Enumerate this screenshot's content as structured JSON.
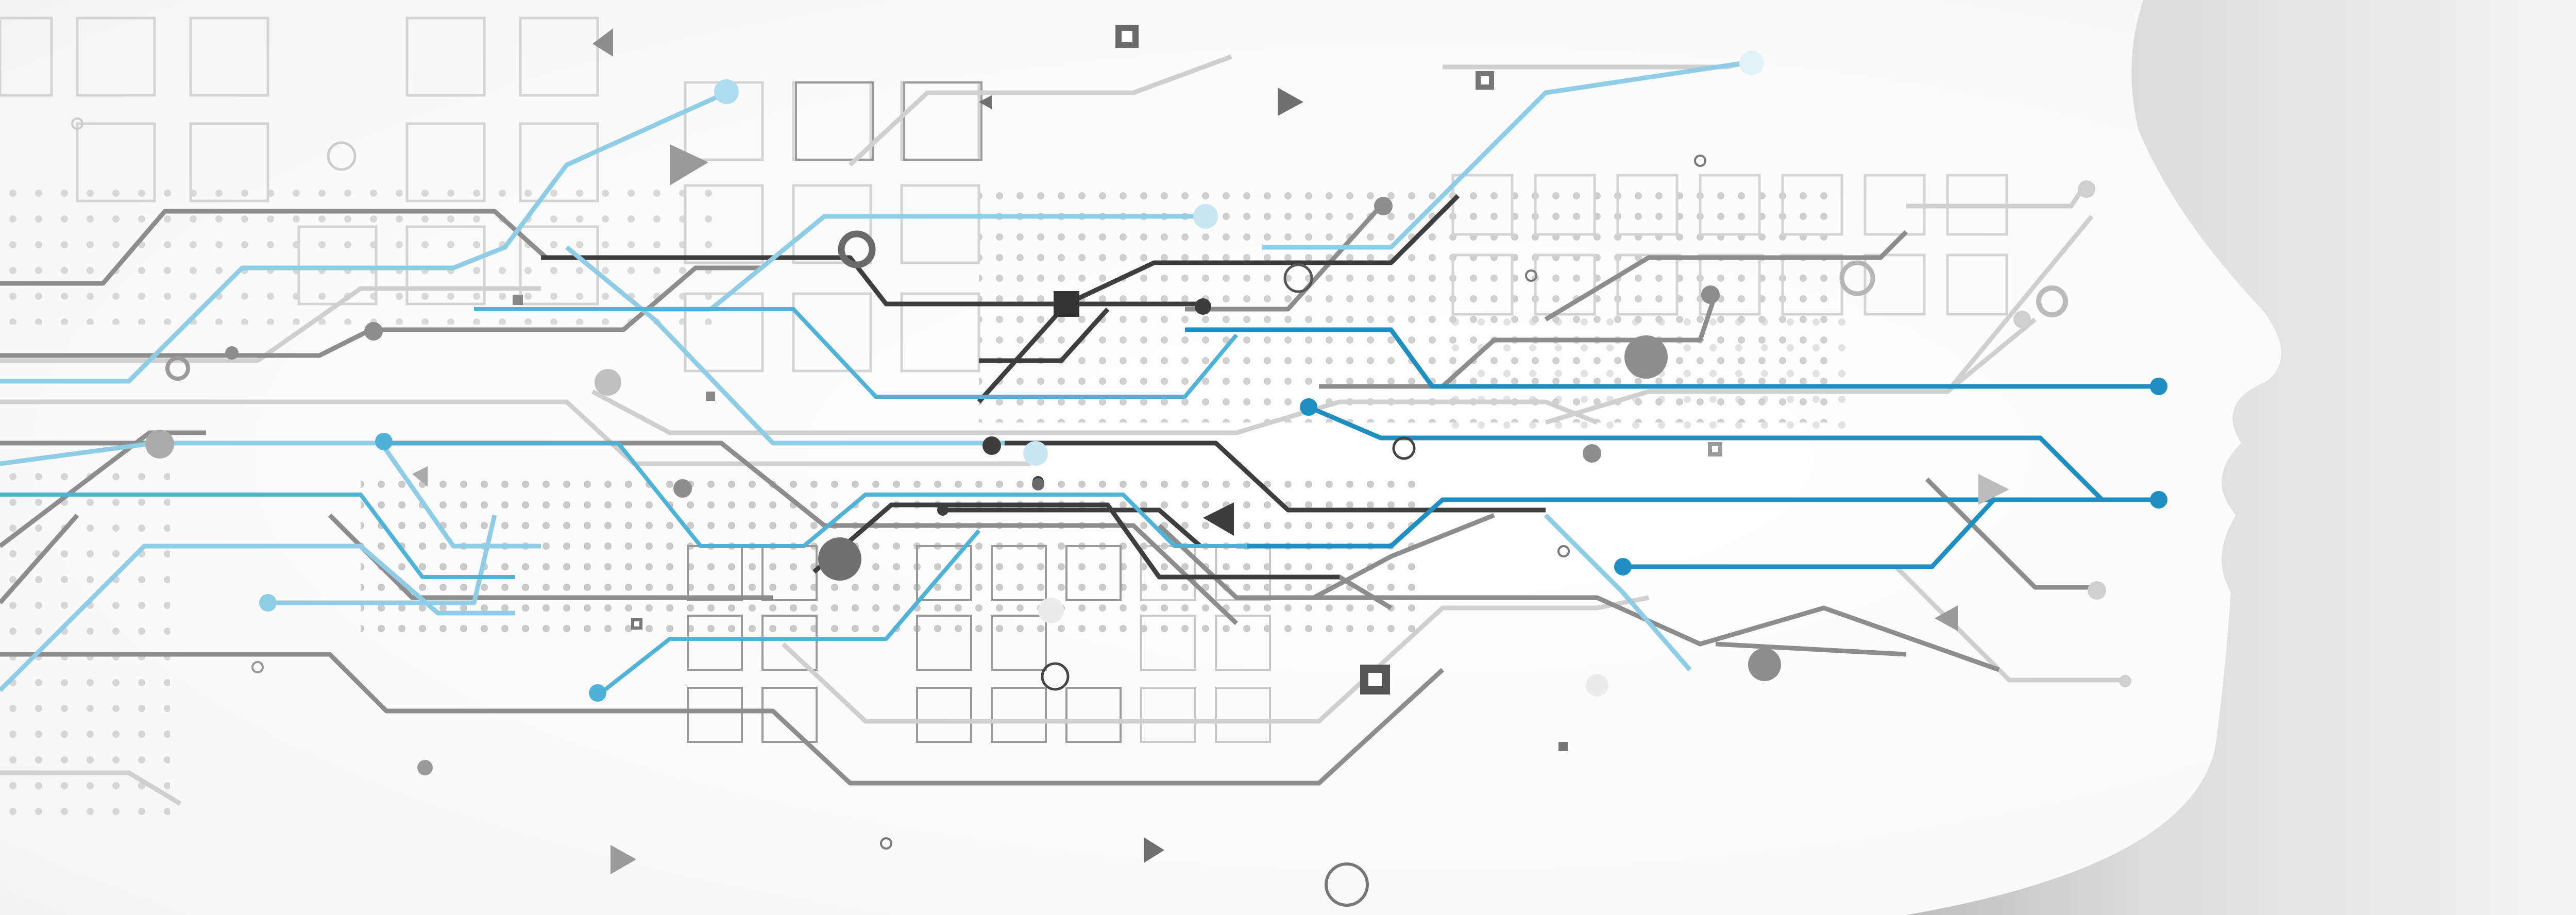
{
  "scene": {
    "subject": "abstract-circuit-face-profile",
    "colors": {
      "background": "#f2f2f2",
      "face": "#ffffff",
      "shadow": "#c9c9c9",
      "accent": "#1e8fc0",
      "accent_light": "#8fcde6",
      "dark": "#3a3a3a",
      "mid": "#8c8c8c",
      "light": "#cfcfcf",
      "dot": "#bdbdbd"
    }
  }
}
